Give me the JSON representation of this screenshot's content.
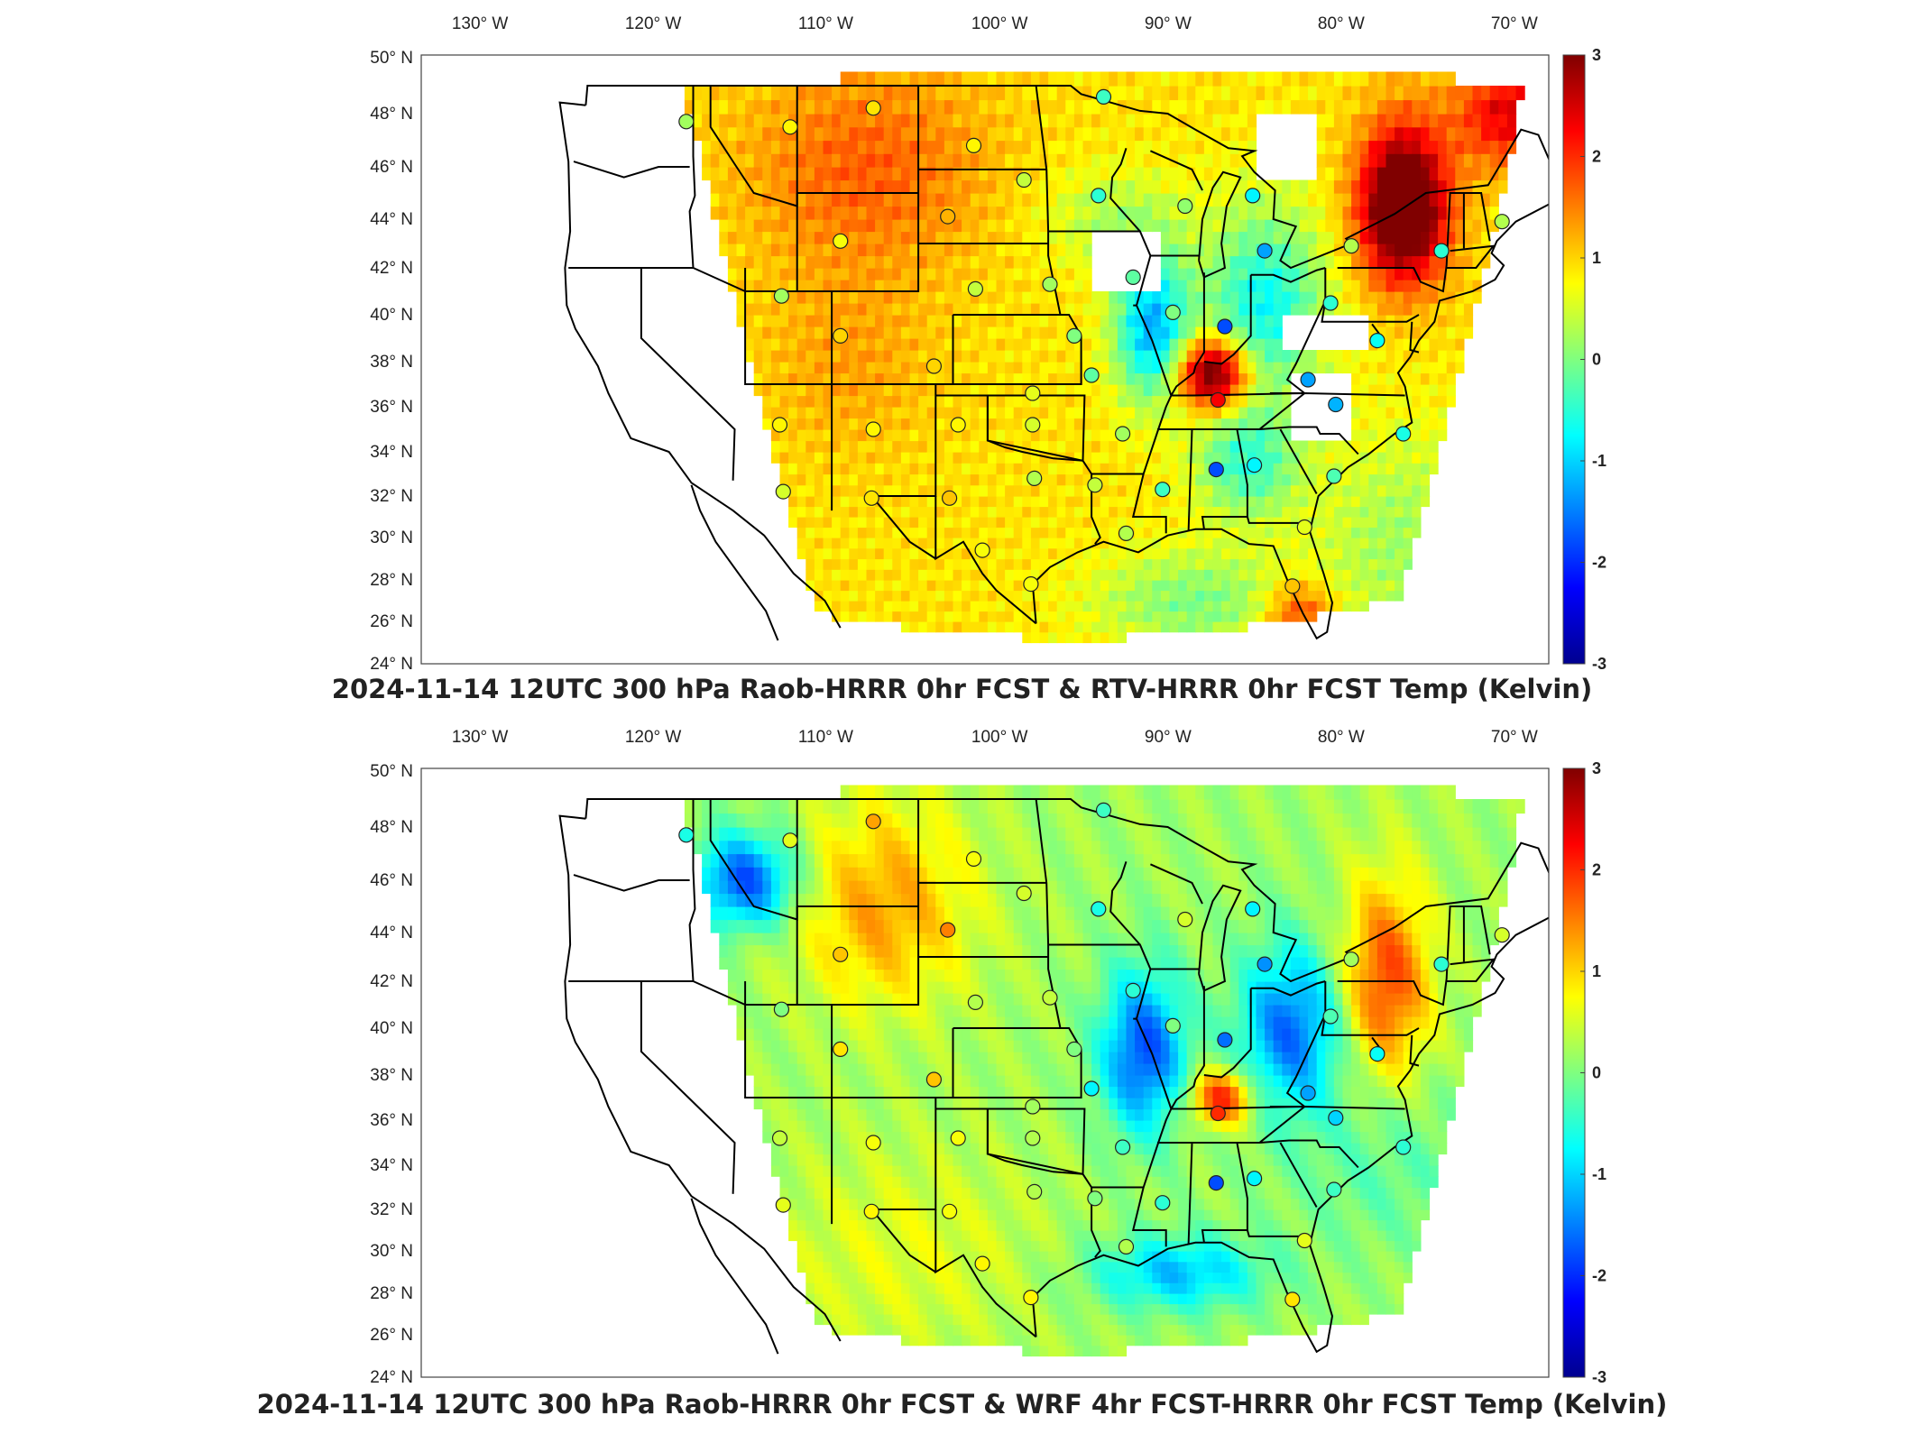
{
  "panels": [
    {
      "title": "2024-11-14 12UTC 300 hPa Raob-HRRR 0hr FCST & RTV-HRRR 0hr FCST Temp (Kelvin)",
      "mode": "rtv"
    },
    {
      "title": "2024-11-14 12UTC 300 hPa Raob-HRRR 0hr FCST & WRF 4hr FCST-HRRR 0hr FCST Temp (Kelvin)",
      "mode": "wrf"
    }
  ],
  "lon_labels": [
    {
      "value": -130,
      "num": "130",
      "hem": "W"
    },
    {
      "value": -120,
      "num": "120",
      "hem": "W"
    },
    {
      "value": -110,
      "num": "110",
      "hem": "W"
    },
    {
      "value": -100,
      "num": "100",
      "hem": "W"
    },
    {
      "value": -90,
      "num": "90",
      "hem": "W"
    },
    {
      "value": -80,
      "num": "80",
      "hem": "W"
    },
    {
      "value": -70,
      "num": "70",
      "hem": "W"
    }
  ],
  "lat_labels": [
    {
      "value": 50,
      "num": "50",
      "hem": "N"
    },
    {
      "value": 48,
      "num": "48",
      "hem": "N"
    },
    {
      "value": 46,
      "num": "46",
      "hem": "N"
    },
    {
      "value": 44,
      "num": "44",
      "hem": "N"
    },
    {
      "value": 42,
      "num": "42",
      "hem": "N"
    },
    {
      "value": 40,
      "num": "40",
      "hem": "N"
    },
    {
      "value": 38,
      "num": "38",
      "hem": "N"
    },
    {
      "value": 36,
      "num": "36",
      "hem": "N"
    },
    {
      "value": 34,
      "num": "34",
      "hem": "N"
    },
    {
      "value": 32,
      "num": "32",
      "hem": "N"
    },
    {
      "value": 30,
      "num": "30",
      "hem": "N"
    },
    {
      "value": 28,
      "num": "28",
      "hem": "N"
    },
    {
      "value": 26,
      "num": "26",
      "hem": "N"
    },
    {
      "value": 24,
      "num": "24",
      "hem": "N"
    }
  ],
  "colorbar": {
    "min": -3,
    "max": 3,
    "ticks": [
      {
        "value": 3,
        "label": "3"
      },
      {
        "value": 2,
        "label": "2"
      },
      {
        "value": 1,
        "label": "1"
      },
      {
        "value": 0,
        "label": "0"
      },
      {
        "value": -1,
        "label": "-1"
      },
      {
        "value": -2,
        "label": "-2"
      },
      {
        "value": -3,
        "label": "-3"
      }
    ],
    "colors": [
      "#00008f",
      "#0000ff",
      "#00ffff",
      "#ffff00",
      "#ff0000",
      "#800000"
    ]
  },
  "stations": [
    {
      "lon": -117.4,
      "lat": 47.7,
      "v1": 0.2,
      "v2": -0.6
    },
    {
      "lon": -111.4,
      "lat": 47.5,
      "v1": 0.8,
      "v2": 0.6
    },
    {
      "lon": -106.6,
      "lat": 48.2,
      "v1": 0.9,
      "v2": 1.3
    },
    {
      "lon": -100.8,
      "lat": 46.8,
      "v1": 0.8,
      "v2": 0.7
    },
    {
      "lon": -97.9,
      "lat": 45.5,
      "v1": 0.4,
      "v2": 0.5
    },
    {
      "lon": -93.6,
      "lat": 44.9,
      "v1": -0.5,
      "v2": -0.6
    },
    {
      "lon": -93.3,
      "lat": 48.6,
      "v1": -0.4,
      "v2": -0.4
    },
    {
      "lon": -88.6,
      "lat": 44.5,
      "v1": 0.1,
      "v2": 0.5
    },
    {
      "lon": -84.7,
      "lat": 44.9,
      "v1": -0.8,
      "v2": -0.8
    },
    {
      "lon": -84.0,
      "lat": 42.7,
      "v1": -1.3,
      "v2": -1.4
    },
    {
      "lon": -79.0,
      "lat": 42.9,
      "v1": 0.3,
      "v2": 0.2
    },
    {
      "lon": -73.8,
      "lat": 42.7,
      "v1": -0.5,
      "v2": -0.5
    },
    {
      "lon": -70.3,
      "lat": 43.9,
      "v1": 0.3,
      "v2": 0.5
    },
    {
      "lon": -102.3,
      "lat": 44.1,
      "v1": 1.2,
      "v2": 1.5
    },
    {
      "lon": -108.5,
      "lat": 43.1,
      "v1": 0.7,
      "v2": 1.1
    },
    {
      "lon": -111.9,
      "lat": 40.8,
      "v1": 0.2,
      "v2": 0.0
    },
    {
      "lon": -108.5,
      "lat": 39.1,
      "v1": 1.0,
      "v2": 0.9
    },
    {
      "lon": -100.7,
      "lat": 41.1,
      "v1": 0.4,
      "v2": 0.3
    },
    {
      "lon": -96.4,
      "lat": 41.3,
      "v1": 0.2,
      "v2": 0.4
    },
    {
      "lon": -91.6,
      "lat": 41.6,
      "v1": -0.2,
      "v2": -0.5
    },
    {
      "lon": -89.3,
      "lat": 40.1,
      "v1": 0.0,
      "v2": 0.0
    },
    {
      "lon": -86.3,
      "lat": 39.5,
      "v1": -1.8,
      "v2": -1.6
    },
    {
      "lon": -80.2,
      "lat": 40.5,
      "v1": -0.5,
      "v2": -0.3
    },
    {
      "lon": -77.5,
      "lat": 38.9,
      "v1": -0.7,
      "v2": -0.7
    },
    {
      "lon": -81.5,
      "lat": 37.2,
      "v1": -1.3,
      "v2": -1.3
    },
    {
      "lon": -79.9,
      "lat": 36.1,
      "v1": -1.2,
      "v2": -1.0
    },
    {
      "lon": -76.0,
      "lat": 34.8,
      "v1": -0.6,
      "v2": -0.5
    },
    {
      "lon": -86.7,
      "lat": 36.3,
      "v1": 2.3,
      "v2": 2.0
    },
    {
      "lon": -84.6,
      "lat": 33.4,
      "v1": -0.8,
      "v2": -0.8
    },
    {
      "lon": -86.8,
      "lat": 33.2,
      "v1": -1.8,
      "v2": -1.8
    },
    {
      "lon": -89.9,
      "lat": 32.3,
      "v1": -0.4,
      "v2": -0.5
    },
    {
      "lon": -92.2,
      "lat": 34.8,
      "v1": 0.2,
      "v2": -0.4
    },
    {
      "lon": -94.0,
      "lat": 37.4,
      "v1": -0.2,
      "v2": -0.8
    },
    {
      "lon": -95.0,
      "lat": 39.1,
      "v1": 0.0,
      "v2": 0.0
    },
    {
      "lon": -97.4,
      "lat": 36.6,
      "v1": 0.6,
      "v2": 0.2
    },
    {
      "lon": -97.4,
      "lat": 35.2,
      "v1": 0.5,
      "v2": 0.3
    },
    {
      "lon": -101.7,
      "lat": 35.2,
      "v1": 0.8,
      "v2": 0.7
    },
    {
      "lon": -97.3,
      "lat": 32.8,
      "v1": 0.3,
      "v2": 0.3
    },
    {
      "lon": -93.8,
      "lat": 32.5,
      "v1": 0.4,
      "v2": 0.0
    },
    {
      "lon": -92.0,
      "lat": 30.2,
      "v1": 0.3,
      "v2": 0.3
    },
    {
      "lon": -97.5,
      "lat": 27.8,
      "v1": 0.7,
      "v2": 0.8
    },
    {
      "lon": -100.3,
      "lat": 29.4,
      "v1": 0.7,
      "v2": 0.8
    },
    {
      "lon": -102.2,
      "lat": 31.9,
      "v1": 1.1,
      "v2": 0.7
    },
    {
      "lon": -106.7,
      "lat": 31.9,
      "v1": 0.9,
      "v2": 0.8
    },
    {
      "lon": -106.6,
      "lat": 35.0,
      "v1": 0.8,
      "v2": 0.7
    },
    {
      "lon": -111.8,
      "lat": 32.2,
      "v1": 0.5,
      "v2": 0.6
    },
    {
      "lon": -112.0,
      "lat": 35.2,
      "v1": 0.8,
      "v2": 0.4
    },
    {
      "lon": -103.1,
      "lat": 37.8,
      "v1": 1.0,
      "v2": 1.1
    },
    {
      "lon": -81.7,
      "lat": 30.5,
      "v1": 0.6,
      "v2": 0.6
    },
    {
      "lon": -80.0,
      "lat": 32.9,
      "v1": -0.3,
      "v2": -0.4
    },
    {
      "lon": -82.4,
      "lat": 27.7,
      "v1": 1.1,
      "v2": 0.9
    }
  ]
}
